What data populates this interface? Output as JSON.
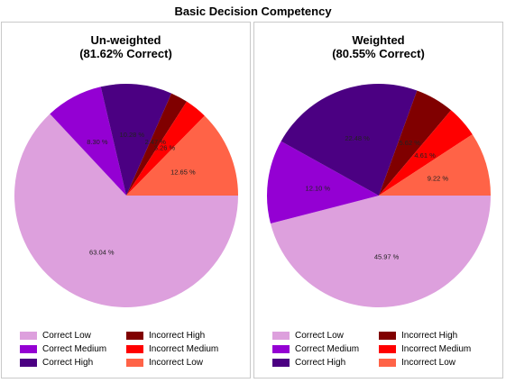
{
  "title": "Basic Decision Competency",
  "chart_data": [
    {
      "type": "pie",
      "title": "Un-weighted",
      "subtitle": "(81.62% Correct)",
      "categories": [
        "Correct Low",
        "Correct Medium",
        "Correct High",
        "Incorrect High",
        "Incorrect Medium",
        "Incorrect Low"
      ],
      "values": [
        63.04,
        8.3,
        10.28,
        2.47,
        3.26,
        12.65
      ],
      "labels": [
        "63.04 %",
        "8.30 %",
        "10.28 %",
        "2.47 %",
        "3.26 %",
        "12.65 %"
      ],
      "colors": [
        "#DDA0DD",
        "#9400D3",
        "#4B0082",
        "#800000",
        "#FF0000",
        "#FF6347"
      ],
      "legend_position": "bottom",
      "start_angle_deg": 0,
      "direction": "clockwise"
    },
    {
      "type": "pie",
      "title": "Weighted",
      "subtitle": "(80.55% Correct)",
      "categories": [
        "Correct Low",
        "Correct Medium",
        "Correct High",
        "Incorrect High",
        "Incorrect Medium",
        "Incorrect Low"
      ],
      "values": [
        45.97,
        12.1,
        22.48,
        5.62,
        4.61,
        9.22
      ],
      "labels": [
        "45.97 %",
        "12.10 %",
        "22.48 %",
        "5.62 %",
        "4.61 %",
        "9.22 %"
      ],
      "colors": [
        "#DDA0DD",
        "#9400D3",
        "#4B0082",
        "#800000",
        "#FF0000",
        "#FF6347"
      ],
      "legend_position": "bottom",
      "start_angle_deg": 0,
      "direction": "clockwise"
    }
  ],
  "legend": {
    "items": [
      {
        "label": "Correct Low",
        "color": "#DDA0DD"
      },
      {
        "label": "Incorrect High",
        "color": "#800000"
      },
      {
        "label": "Correct Medium",
        "color": "#9400D3"
      },
      {
        "label": "Incorrect Medium",
        "color": "#FF0000"
      },
      {
        "label": "Correct High",
        "color": "#4B0082"
      },
      {
        "label": "Incorrect Low",
        "color": "#FF6347"
      }
    ]
  }
}
